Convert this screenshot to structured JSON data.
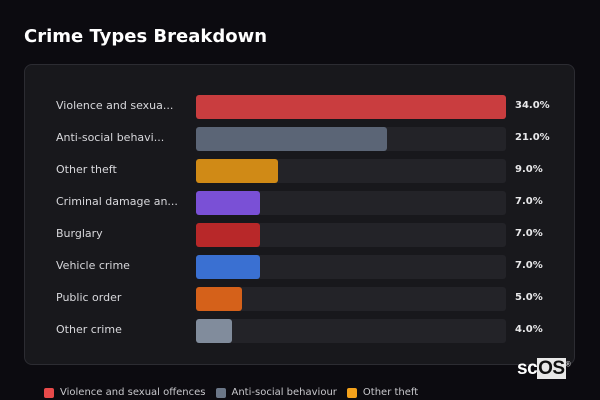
{
  "title": "Crime Types Breakdown",
  "chart_data": {
    "type": "bar",
    "orientation": "horizontal",
    "title": "Crime Types Breakdown",
    "categories": [
      "Violence and sexua...",
      "Anti-social behavi...",
      "Other theft",
      "Criminal damage an...",
      "Burglary",
      "Vehicle crime",
      "Public order",
      "Other crime"
    ],
    "values": [
      34.0,
      21.0,
      9.0,
      7.0,
      7.0,
      7.0,
      5.0,
      4.0
    ],
    "value_labels": [
      "34.0%",
      "21.0%",
      "9.0%",
      "7.0%",
      "7.0%",
      "7.0%",
      "5.0%",
      "4.0%"
    ],
    "colors": [
      "#c93d3f",
      "#5b6576",
      "#d08a16",
      "#7a50d6",
      "#b82829",
      "#3a70d2",
      "#d5611a",
      "#818c9c"
    ],
    "xlim": [
      0,
      34
    ],
    "unit": "%",
    "grid": false,
    "legend": {
      "placement": "bottom",
      "entries": [
        {
          "label": "Violence and sexual offences",
          "color": "#e84a4a"
        },
        {
          "label": "Anti-social behaviour",
          "color": "#6b7788"
        },
        {
          "label": "Other theft",
          "color": "#f4a21c"
        }
      ]
    }
  },
  "logo": {
    "text_a": "sc",
    "text_b": "OS",
    "mark": "®"
  }
}
